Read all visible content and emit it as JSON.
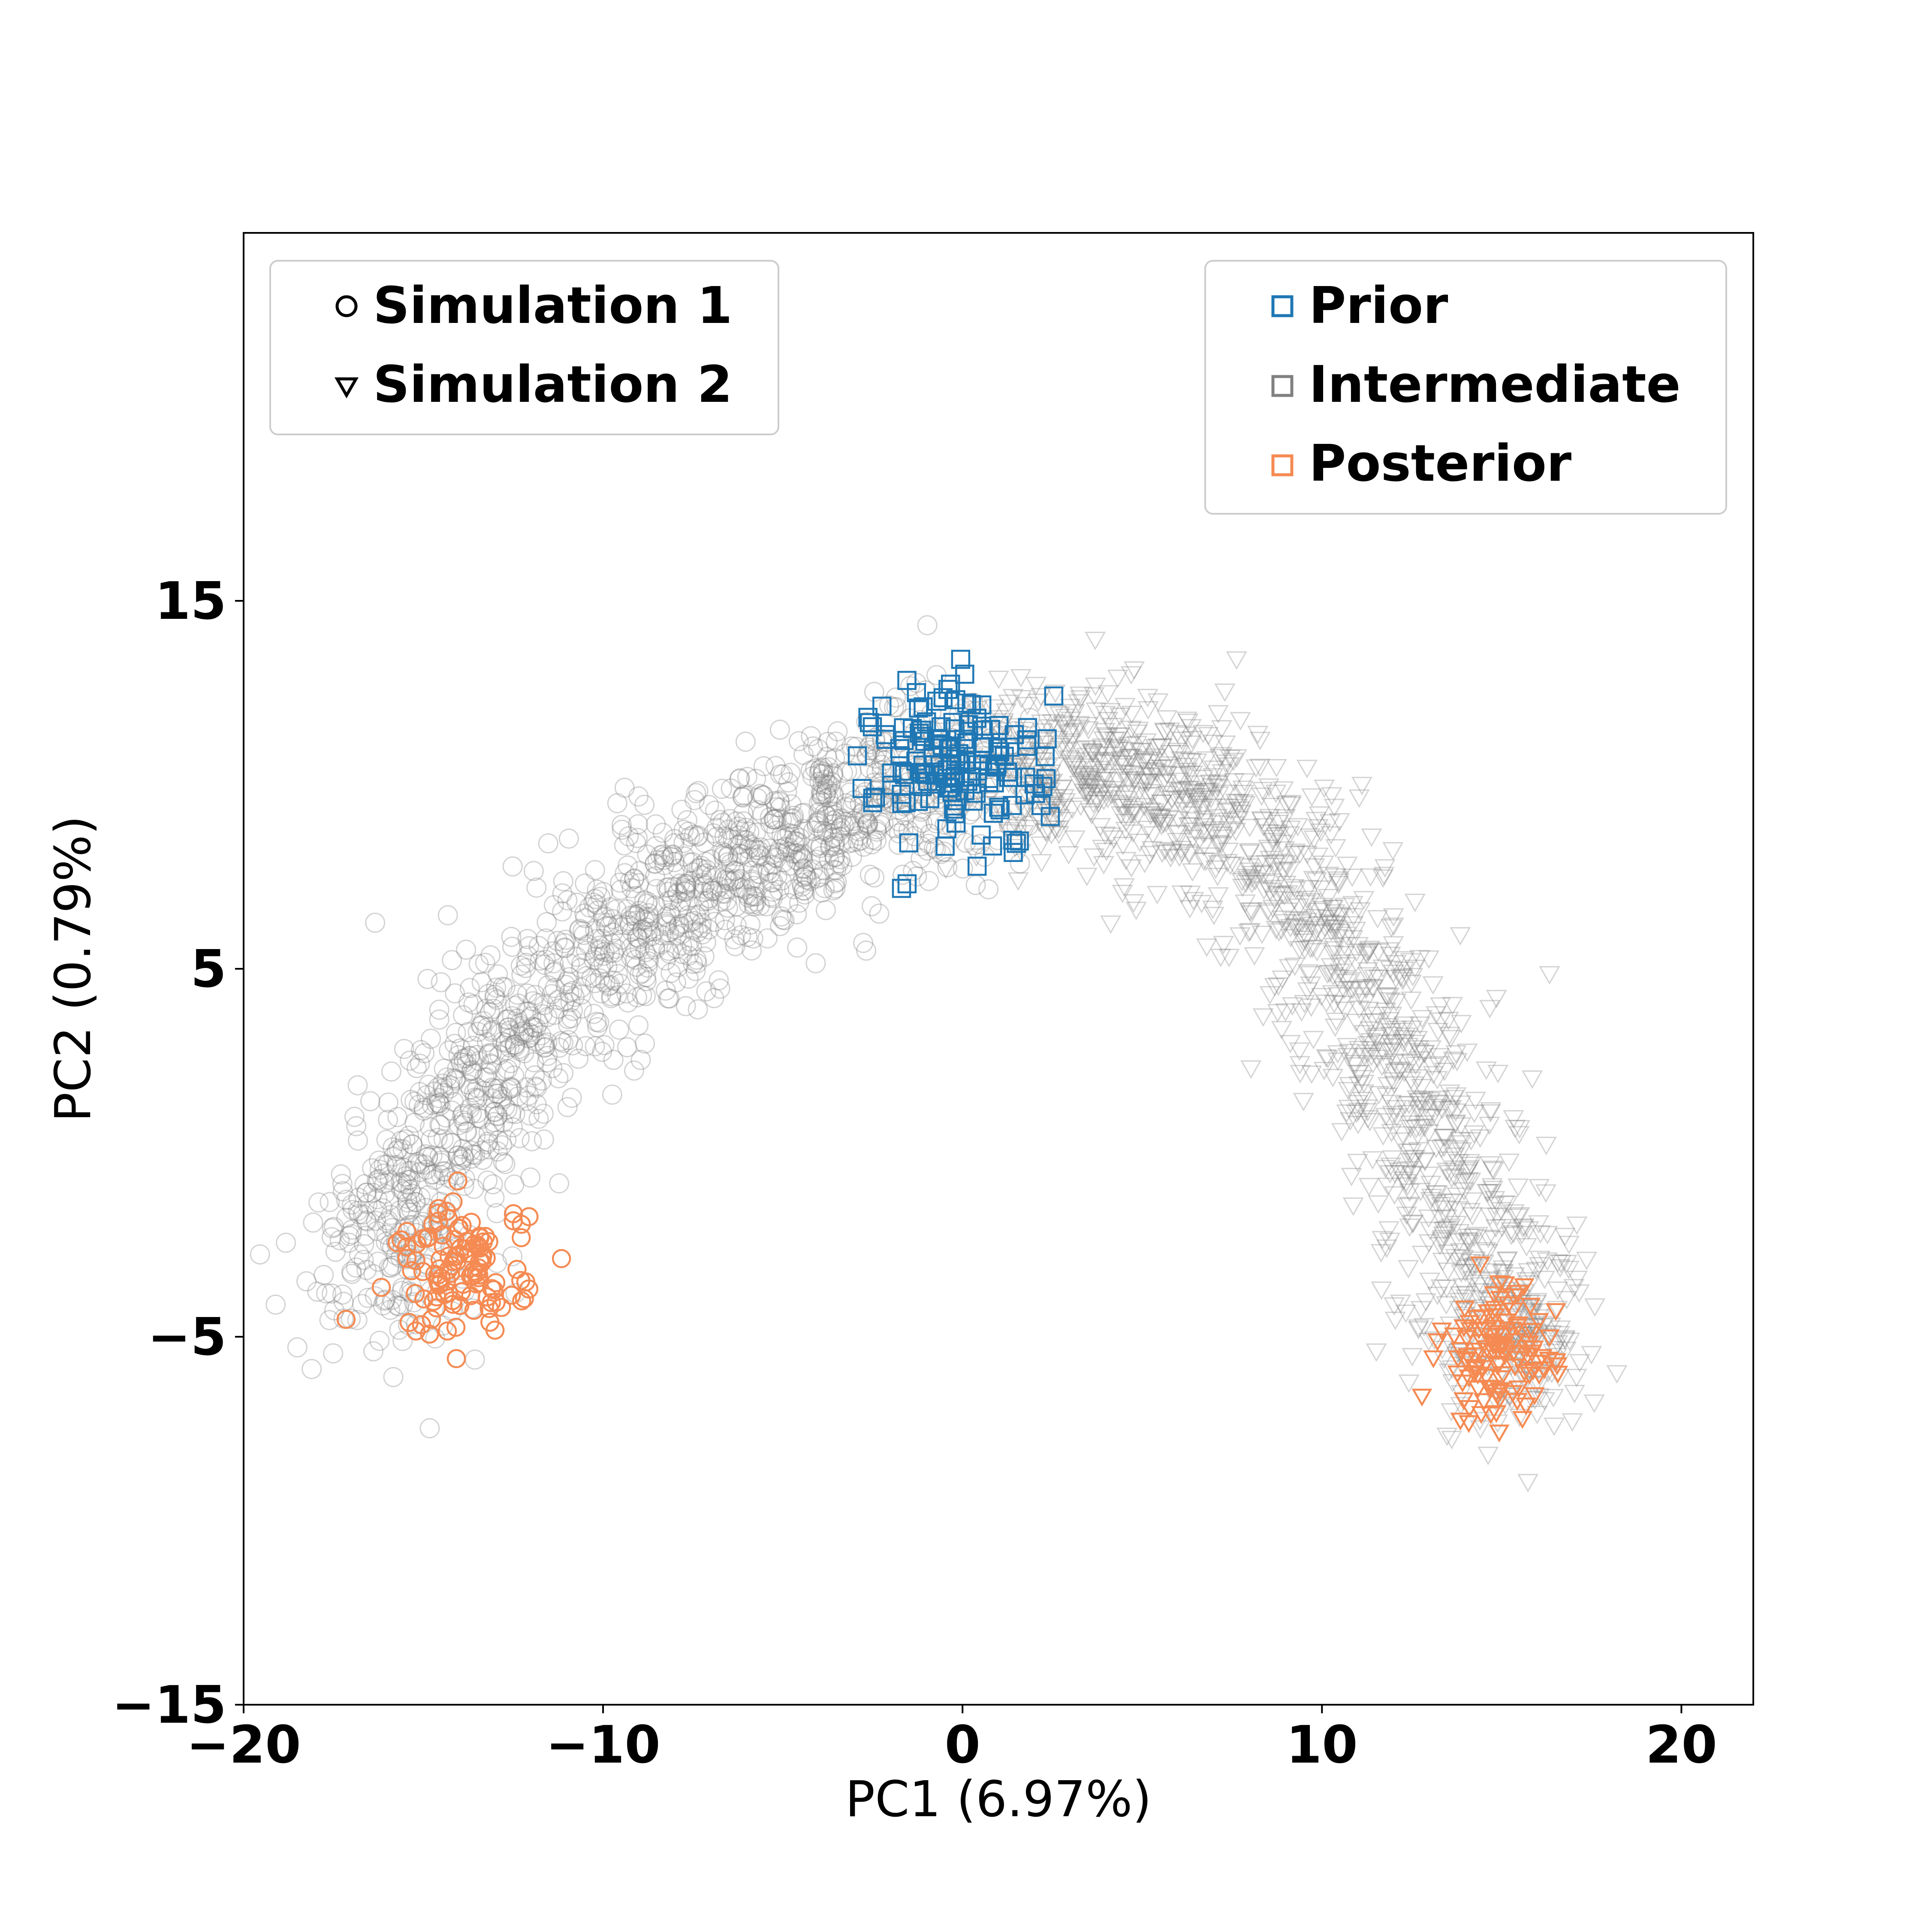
{
  "chart_data": {
    "type": "scatter",
    "xlabel": "PC1 (6.97%)",
    "ylabel": "PC2 (0.79%)",
    "xlim": [
      -20,
      22
    ],
    "ylim": [
      -15,
      25
    ],
    "x_ticks": [
      -20,
      -10,
      0,
      10,
      20
    ],
    "y_ticks": [
      -15,
      -5,
      5,
      15
    ],
    "x_tick_labels": [
      "−20",
      "−10",
      "0",
      "10",
      "20"
    ],
    "y_tick_labels": [
      "−15",
      "−5",
      "5",
      "15"
    ],
    "grid": false,
    "marker_legend": {
      "placement": "top-left",
      "entries": [
        {
          "label": "Simulation 1",
          "marker": "circle"
        },
        {
          "label": "Simulation 2",
          "marker": "triangle-down"
        }
      ]
    },
    "color_legend": {
      "placement": "top-right",
      "entries": [
        {
          "label": "Prior",
          "color": "#1f77b4"
        },
        {
          "label": "Intermediate",
          "color": "#808080"
        },
        {
          "label": "Posterior",
          "color": "#f58a52"
        }
      ]
    },
    "series": [
      {
        "name": "Intermediate",
        "simulation": "Simulation 1",
        "marker": "circle",
        "color": "#808080",
        "path": [
          [
            -16.5,
            -4.2
          ],
          [
            -15.5,
            -1.5
          ],
          [
            -14,
            1
          ],
          [
            -12,
            3.5
          ],
          [
            -10,
            5.5
          ],
          [
            -8,
            7
          ],
          [
            -6,
            8
          ],
          [
            -4,
            9
          ],
          [
            -2,
            9.8
          ],
          [
            0.5,
            10.2
          ]
        ],
        "point_count": 1400,
        "spread": 1.3
      },
      {
        "name": "Intermediate",
        "simulation": "Simulation 2",
        "marker": "triangle-down",
        "color": "#808080",
        "path": [
          [
            1,
            10
          ],
          [
            3,
            10.5
          ],
          [
            5,
            10.3
          ],
          [
            7,
            9.5
          ],
          [
            9,
            7.5
          ],
          [
            11,
            4.5
          ],
          [
            12.5,
            1.5
          ],
          [
            14,
            -1.5
          ],
          [
            15,
            -4.5
          ],
          [
            15.5,
            -6
          ]
        ],
        "point_count": 1400,
        "spread": 1.3
      },
      {
        "name": "Prior",
        "marker": "square",
        "color": "#1f77b4",
        "center": [
          0,
          10.5
        ],
        "spread": [
          1.2,
          1.2
        ],
        "point_count": 150
      },
      {
        "name": "Posterior",
        "simulation": "Simulation 1",
        "marker": "circle",
        "color": "#f58a52",
        "center": [
          -13.9,
          -3.2
        ],
        "spread": [
          0.9,
          0.9
        ],
        "point_count": 120
      },
      {
        "name": "Posterior",
        "simulation": "Simulation 2",
        "marker": "triangle-down",
        "color": "#f58a52",
        "center": [
          14.9,
          -5.5
        ],
        "spread": [
          0.8,
          0.9
        ],
        "point_count": 120
      }
    ]
  }
}
